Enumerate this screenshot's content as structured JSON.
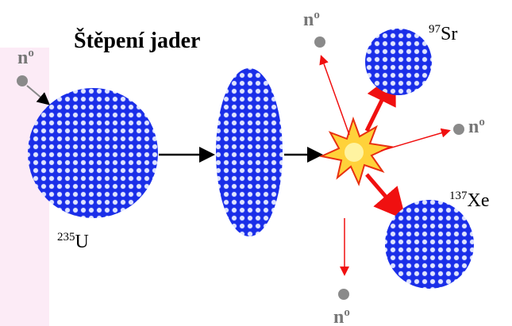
{
  "title": "Štěpení jader",
  "nuclei": [
    {
      "mass": "235",
      "symbol": "U"
    },
    {
      "mass": "97",
      "symbol": "Sr"
    },
    {
      "mass": "137",
      "symbol": "Xe"
    }
  ],
  "neutrons": [
    {
      "symbol": "n",
      "superscript": "o"
    },
    {
      "symbol": "n",
      "superscript": "o"
    },
    {
      "symbol": "n",
      "superscript": "o"
    },
    {
      "symbol": "n",
      "superscript": "o"
    }
  ]
}
